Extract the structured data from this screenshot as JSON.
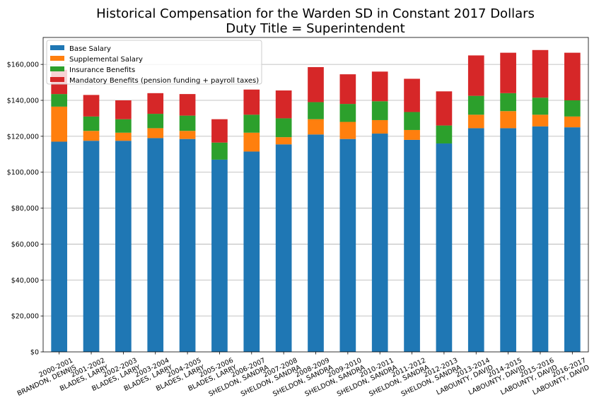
{
  "chart_data": {
    "type": "bar",
    "stacked": true,
    "title": "Historical Compensation for the Warden SD in Constant 2017 Dollars",
    "subtitle": "Duty Title = Superintendent",
    "xlabel": "",
    "ylabel": "",
    "ylim": [
      0,
      175000
    ],
    "yticks": [
      0,
      20000,
      40000,
      60000,
      80000,
      100000,
      120000,
      140000,
      160000
    ],
    "ytick_labels": [
      "$0",
      "$20,000",
      "$40,000",
      "$60,000",
      "$80,000",
      "$100,000",
      "$120,000",
      "$140,000",
      "$160,000"
    ],
    "grid": "horizontal",
    "legend_position": "top-left",
    "categories": [
      [
        "2000-2001",
        "BRANDON, DENNIS"
      ],
      [
        "2001-2002",
        "BLADES, LARRY"
      ],
      [
        "2002-2003",
        "BLADES, LARRY"
      ],
      [
        "2003-2004",
        "BLADES, LARRY"
      ],
      [
        "2004-2005",
        "BLADES, LARRY"
      ],
      [
        "2005-2006",
        "BLADES, LARRY"
      ],
      [
        "2006-2007",
        "SHELDON, SANDRA"
      ],
      [
        "2007-2008",
        "SHELDON, SANDRA"
      ],
      [
        "2008-2009",
        "SHELDON, SANDRA"
      ],
      [
        "2009-2010",
        "SHELDON, SANDRA"
      ],
      [
        "2010-2011",
        "SHELDON, SANDRA"
      ],
      [
        "2011-2012",
        "SHELDON, SANDRA"
      ],
      [
        "2012-2013",
        "SHELDON, SANDRA"
      ],
      [
        "2013-2014",
        "LABOUNTY, DAVID"
      ],
      [
        "2014-2015",
        "LABOUNTY, DAVID"
      ],
      [
        "2015-2016",
        "LABOUNTY, DAVID"
      ],
      [
        "2016-2017",
        "LABOUNTY, DAVID"
      ]
    ],
    "series": [
      {
        "name": "Base Salary",
        "color": "#1f77b4",
        "values": [
          117000,
          117500,
          117500,
          119000,
          118500,
          107000,
          111500,
          115500,
          121000,
          118500,
          121500,
          118000,
          116000,
          124500,
          124500,
          125500,
          125000
        ]
      },
      {
        "name": "Supplemental Salary",
        "color": "#ff7f0e",
        "values": [
          19500,
          5500,
          4500,
          5500,
          4500,
          0,
          10500,
          4000,
          8500,
          9500,
          7500,
          5500,
          0,
          7500,
          9500,
          6500,
          6000
        ]
      },
      {
        "name": "Insurance Benefits",
        "color": "#2ca02c",
        "values": [
          7000,
          8000,
          7500,
          8000,
          8500,
          9500,
          10000,
          10500,
          9500,
          10000,
          10500,
          10000,
          10000,
          10500,
          10000,
          9500,
          9000
        ]
      },
      {
        "name": "Mandatory Benefits (pension funding + payroll taxes)",
        "color": "#d62728",
        "values": [
          13500,
          12000,
          10500,
          11500,
          12000,
          13000,
          14000,
          15500,
          19500,
          16500,
          16500,
          18500,
          19000,
          22500,
          22500,
          26500,
          26500
        ]
      }
    ]
  }
}
